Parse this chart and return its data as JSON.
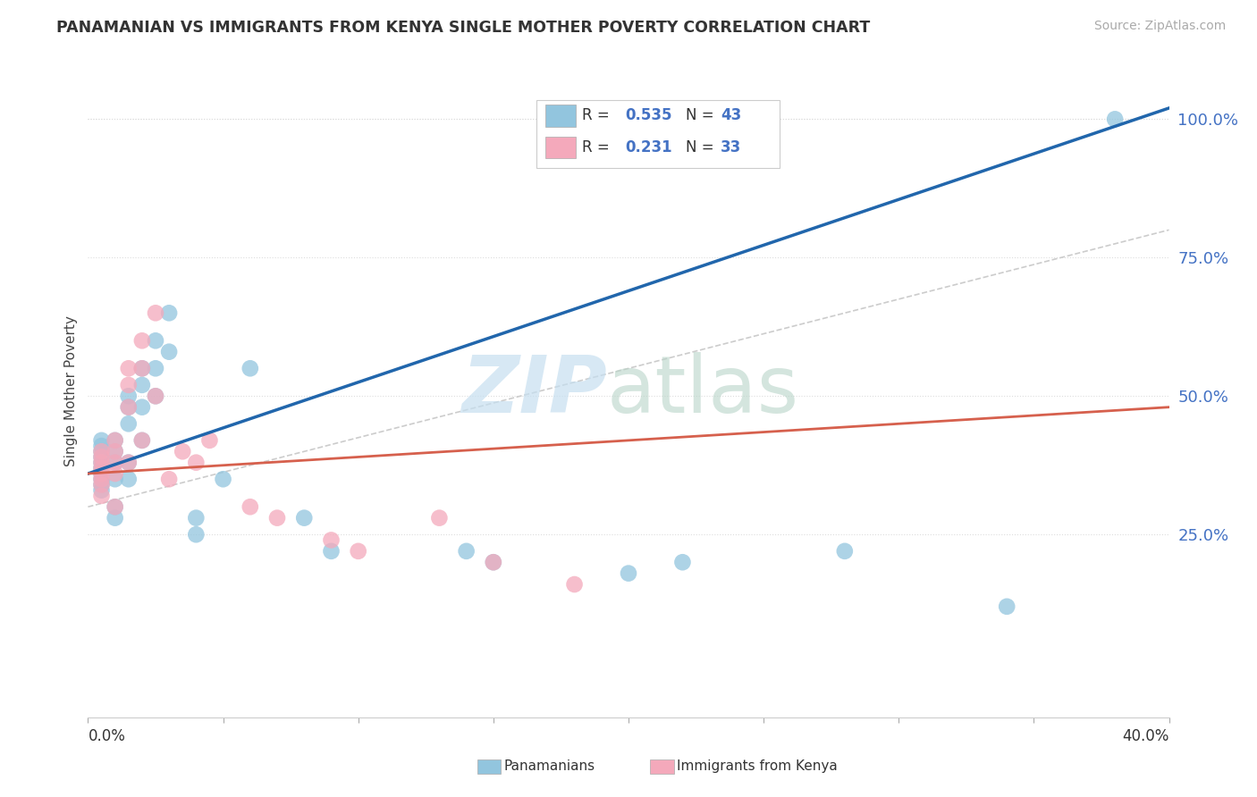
{
  "title": "PANAMANIAN VS IMMIGRANTS FROM KENYA SINGLE MOTHER POVERTY CORRELATION CHART",
  "source": "Source: ZipAtlas.com",
  "ylabel": "Single Mother Poverty",
  "right_yticks": [
    "25.0%",
    "50.0%",
    "75.0%",
    "100.0%"
  ],
  "right_ytick_vals": [
    0.25,
    0.5,
    0.75,
    1.0
  ],
  "xlim": [
    0.0,
    0.4
  ],
  "ylim": [
    -0.08,
    1.1
  ],
  "blue_color": "#92c5de",
  "pink_color": "#f4a9bb",
  "blue_line_color": "#2166ac",
  "pink_line_color": "#d6604d",
  "ref_line_color": "#cccccc",
  "blue_scatter_x": [
    0.005,
    0.005,
    0.005,
    0.005,
    0.005,
    0.005,
    0.005,
    0.005,
    0.005,
    0.005,
    0.01,
    0.01,
    0.01,
    0.01,
    0.01,
    0.01,
    0.015,
    0.015,
    0.015,
    0.015,
    0.015,
    0.02,
    0.02,
    0.02,
    0.02,
    0.025,
    0.025,
    0.025,
    0.03,
    0.03,
    0.04,
    0.04,
    0.05,
    0.06,
    0.08,
    0.09,
    0.14,
    0.15,
    0.2,
    0.22,
    0.28,
    0.34,
    0.38
  ],
  "blue_scatter_y": [
    0.36,
    0.37,
    0.38,
    0.39,
    0.4,
    0.41,
    0.42,
    0.35,
    0.34,
    0.33,
    0.38,
    0.4,
    0.42,
    0.35,
    0.3,
    0.28,
    0.5,
    0.48,
    0.45,
    0.38,
    0.35,
    0.55,
    0.52,
    0.48,
    0.42,
    0.6,
    0.55,
    0.5,
    0.65,
    0.58,
    0.28,
    0.25,
    0.35,
    0.55,
    0.28,
    0.22,
    0.22,
    0.2,
    0.18,
    0.2,
    0.22,
    0.12,
    1.0
  ],
  "pink_scatter_x": [
    0.005,
    0.005,
    0.005,
    0.005,
    0.005,
    0.005,
    0.005,
    0.005,
    0.01,
    0.01,
    0.01,
    0.01,
    0.01,
    0.015,
    0.015,
    0.015,
    0.015,
    0.02,
    0.02,
    0.02,
    0.025,
    0.025,
    0.03,
    0.035,
    0.04,
    0.045,
    0.06,
    0.07,
    0.09,
    0.1,
    0.13,
    0.15,
    0.18
  ],
  "pink_scatter_y": [
    0.36,
    0.37,
    0.38,
    0.39,
    0.4,
    0.35,
    0.34,
    0.32,
    0.38,
    0.4,
    0.42,
    0.36,
    0.3,
    0.55,
    0.52,
    0.48,
    0.38,
    0.6,
    0.55,
    0.42,
    0.65,
    0.5,
    0.35,
    0.4,
    0.38,
    0.42,
    0.3,
    0.28,
    0.24,
    0.22,
    0.28,
    0.2,
    0.16
  ],
  "blue_line_x0": 0.0,
  "blue_line_y0": 0.36,
  "blue_line_x1": 0.4,
  "blue_line_y1": 1.02,
  "pink_line_x0": 0.0,
  "pink_line_y0": 0.36,
  "pink_line_x1": 0.4,
  "pink_line_y1": 0.48,
  "ref_line_x0": 0.0,
  "ref_line_y0": 0.3,
  "ref_line_x1": 0.4,
  "ref_line_y1": 0.8
}
